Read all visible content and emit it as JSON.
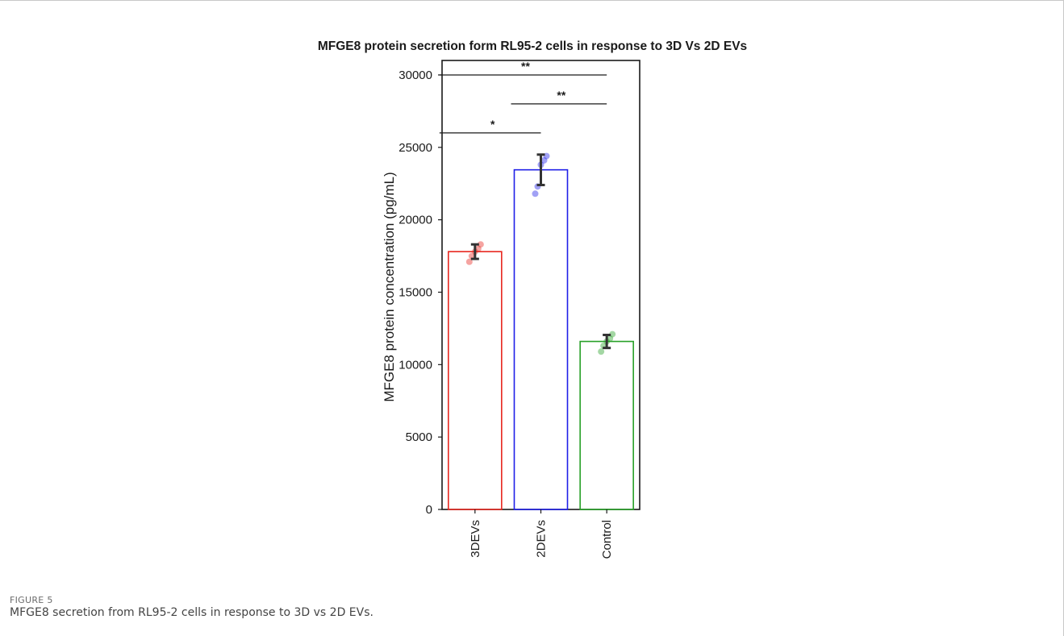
{
  "figure": {
    "label": "FIGURE 5",
    "caption": "MFGE8 secretion from RL95-2 cells in response to 3D vs 2D EVs."
  },
  "chart_data": {
    "type": "bar",
    "title": "MFGE8 protein secretion form RL95-2 cells in response to 3D Vs 2D EVs",
    "xlabel": "",
    "ylabel": "MFGE8 protein concentration (pg/mL)",
    "ylim": [
      0,
      31000
    ],
    "yticks": [
      0,
      5000,
      10000,
      15000,
      20000,
      25000,
      30000
    ],
    "categories": [
      "3DEVs",
      "2DEVs",
      "Control"
    ],
    "values": [
      17800,
      23450,
      11600
    ],
    "error": [
      500,
      1050,
      450
    ],
    "colors": [
      "#e8261e",
      "#1f1fe8",
      "#27a027"
    ],
    "points": [
      [
        17100,
        17500,
        17800,
        18000,
        18300
      ],
      [
        21800,
        22300,
        23800,
        24100,
        24400
      ],
      [
        10900,
        11300,
        11600,
        11800,
        12100
      ]
    ],
    "significance": [
      {
        "from": 0,
        "to": 2,
        "y": 30000,
        "label": "**"
      },
      {
        "from": 1,
        "to": 2,
        "y": 28000,
        "label": "**"
      },
      {
        "from": 0,
        "to": 1,
        "y": 26000,
        "label": "*"
      }
    ],
    "grid": false,
    "legend": "none"
  }
}
